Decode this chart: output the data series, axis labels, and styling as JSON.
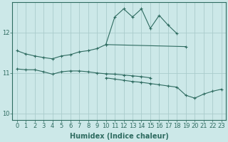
{
  "background_color": "#cce8e8",
  "grid_color": "#aacccc",
  "line_color": "#2e6b60",
  "xlabel": "Humidex (Indice chaleur)",
  "xlabel_fontsize": 7,
  "tick_fontsize": 6,
  "yticks": [
    10,
    11,
    12
  ],
  "xlim": [
    -0.5,
    23.5
  ],
  "ylim": [
    9.85,
    12.75
  ],
  "series": [
    {
      "x": [
        0,
        1,
        2,
        3,
        4,
        5,
        6,
        7,
        8,
        9,
        10,
        19
      ],
      "y": [
        11.55,
        11.47,
        11.42,
        11.38,
        11.35,
        11.42,
        11.45,
        11.52,
        11.55,
        11.6,
        11.7,
        11.65
      ]
    },
    {
      "x": [
        10,
        11,
        12,
        13,
        14,
        15,
        16,
        17,
        18
      ],
      "y": [
        11.7,
        12.38,
        12.58,
        12.38,
        12.58,
        12.1,
        12.42,
        12.18,
        11.97
      ]
    },
    {
      "x": [
        0,
        1,
        2,
        3,
        4,
        5,
        6,
        7,
        8,
        9,
        10,
        11,
        12,
        13,
        14,
        15
      ],
      "y": [
        11.1,
        11.08,
        11.08,
        11.03,
        10.97,
        11.03,
        11.05,
        11.05,
        11.03,
        11.0,
        10.98,
        10.97,
        10.95,
        10.93,
        10.91,
        10.88
      ]
    },
    {
      "x": [
        10,
        11,
        12,
        13,
        14,
        15,
        16,
        17,
        18,
        19,
        20,
        21,
        22,
        23
      ],
      "y": [
        10.88,
        10.85,
        10.82,
        10.79,
        10.77,
        10.74,
        10.71,
        10.68,
        10.65,
        10.45,
        10.38,
        10.48,
        10.55,
        10.6
      ]
    }
  ]
}
